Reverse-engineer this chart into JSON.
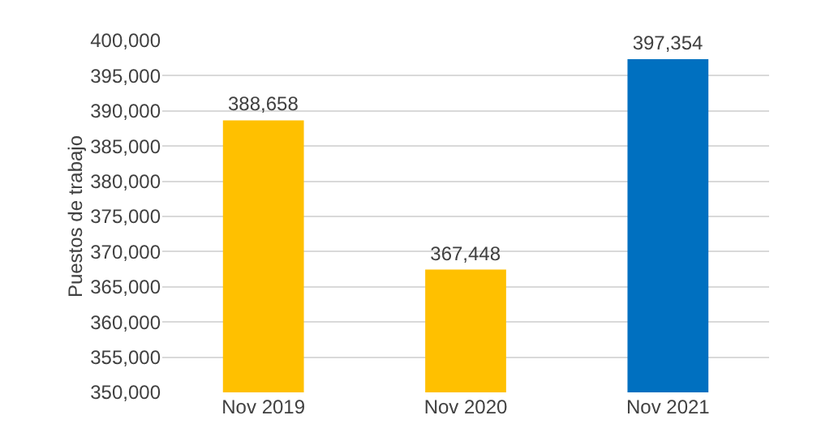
{
  "chart_data": {
    "type": "bar",
    "ylabel": "Puestos de trabajo",
    "categories": [
      "Nov 2019",
      "Nov 2020",
      "Nov 2021"
    ],
    "values": [
      388658,
      367448,
      397354
    ],
    "colors": [
      "#ffc000",
      "#ffc000",
      "#0070c0"
    ],
    "ylim": [
      350000,
      400000
    ],
    "yticks": [
      {
        "value": 350000,
        "label": "350,000"
      },
      {
        "value": 355000,
        "label": "355,000"
      },
      {
        "value": 360000,
        "label": "360,000"
      },
      {
        "value": 365000,
        "label": "365,000"
      },
      {
        "value": 370000,
        "label": "370,000"
      },
      {
        "value": 375000,
        "label": "375,000"
      },
      {
        "value": 380000,
        "label": "380,000"
      },
      {
        "value": 385000,
        "label": "385,000"
      },
      {
        "value": 390000,
        "label": "390,000"
      },
      {
        "value": 395000,
        "label": "395,000"
      },
      {
        "value": 400000,
        "label": "400,000"
      }
    ],
    "value_labels": [
      "388,658",
      "367,448",
      "397,354"
    ],
    "grid": "y"
  }
}
